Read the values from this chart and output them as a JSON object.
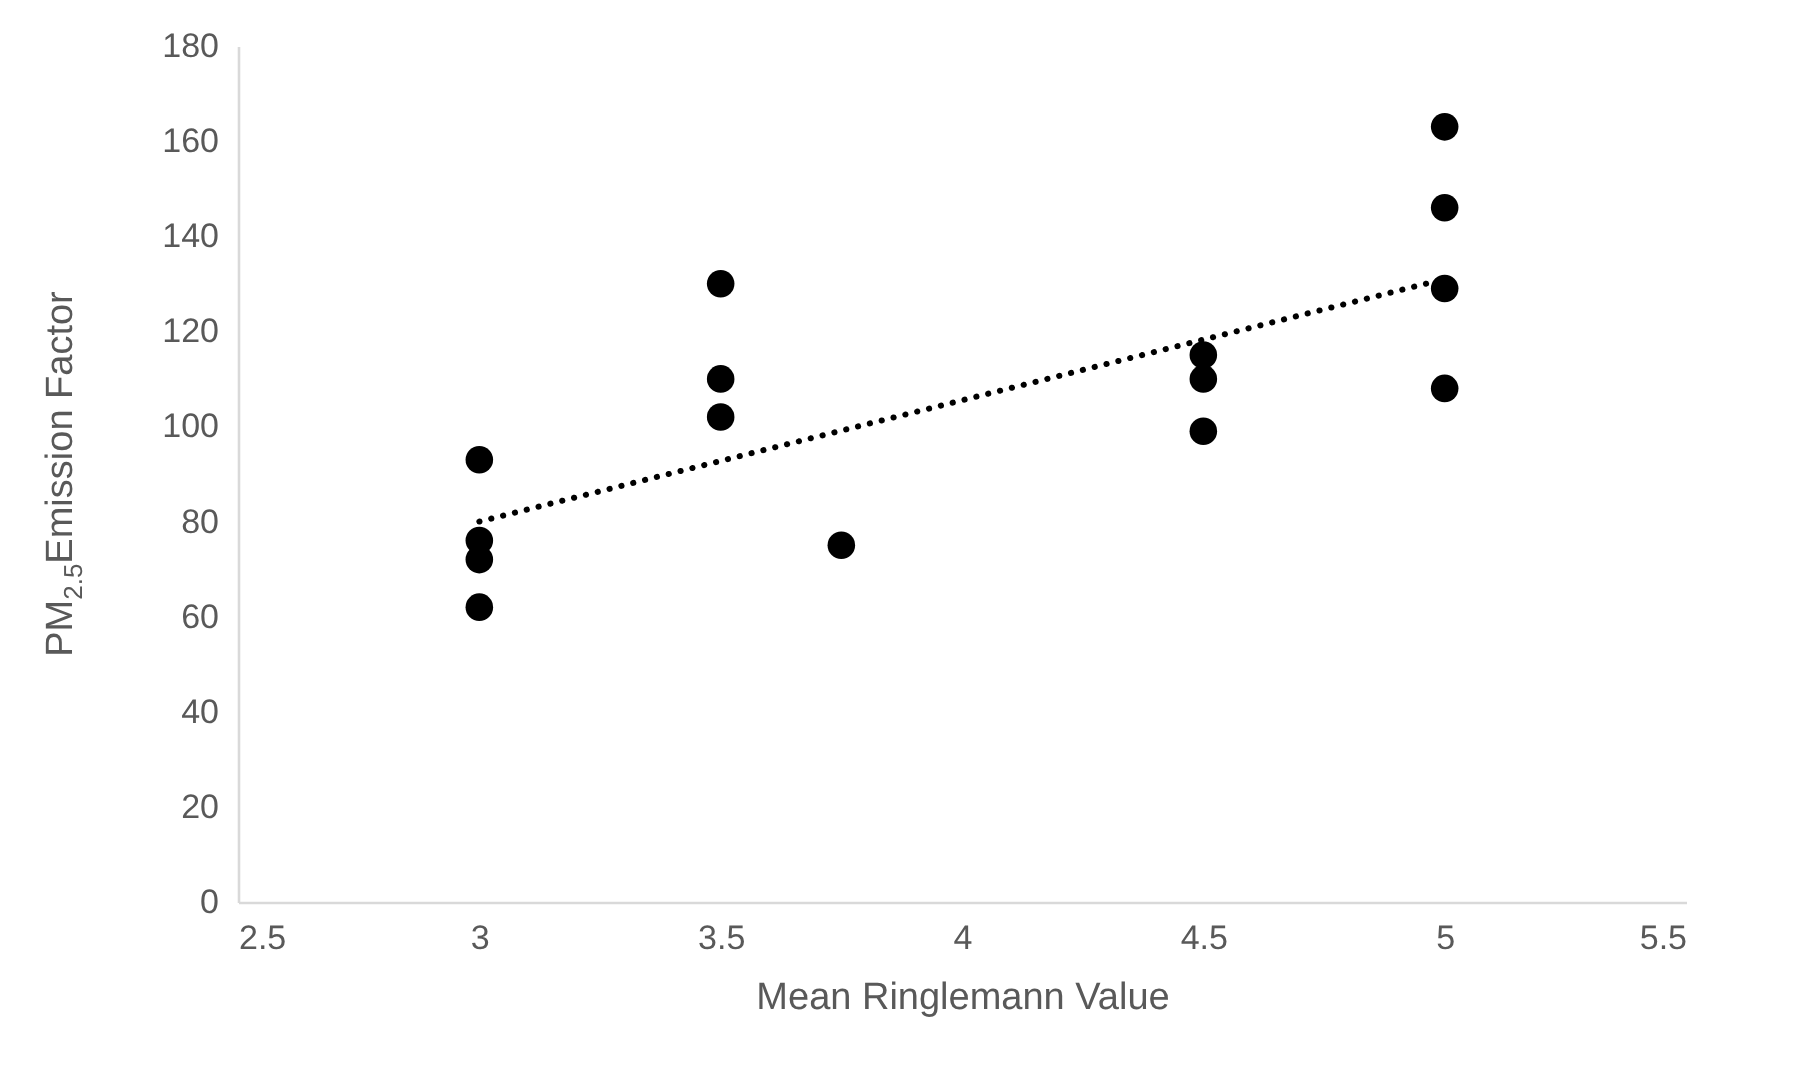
{
  "chart_data": {
    "type": "scatter",
    "xlabel": "Mean Ringlemann Value",
    "ylabel": "PM$_{2.5}$Emission Factor",
    "xlim": [
      2.5,
      5.5
    ],
    "xticks": [
      2.5,
      3,
      3.5,
      4,
      4.5,
      5,
      5.5
    ],
    "ylim": [
      0,
      180
    ],
    "yticks": [
      0,
      20,
      40,
      60,
      80,
      100,
      120,
      140,
      160,
      180
    ],
    "grid": false,
    "series": [
      {
        "color": "#000000",
        "marker": "circle",
        "x": [
          3,
          3,
          3,
          3,
          3.5,
          3.5,
          3.5,
          3.75,
          4.5,
          4.5,
          4.5,
          5,
          5,
          5,
          5
        ],
        "values": [
          93,
          76,
          72,
          62,
          130,
          110,
          102,
          75,
          115,
          110,
          99,
          163,
          146,
          129,
          108
        ]
      },
      {
        "type": "line",
        "color": "#000000",
        "line_style": "dotted",
        "marker": "none",
        "x": [
          3,
          5
        ],
        "values": [
          80,
          131
        ]
      }
    ]
  }
}
